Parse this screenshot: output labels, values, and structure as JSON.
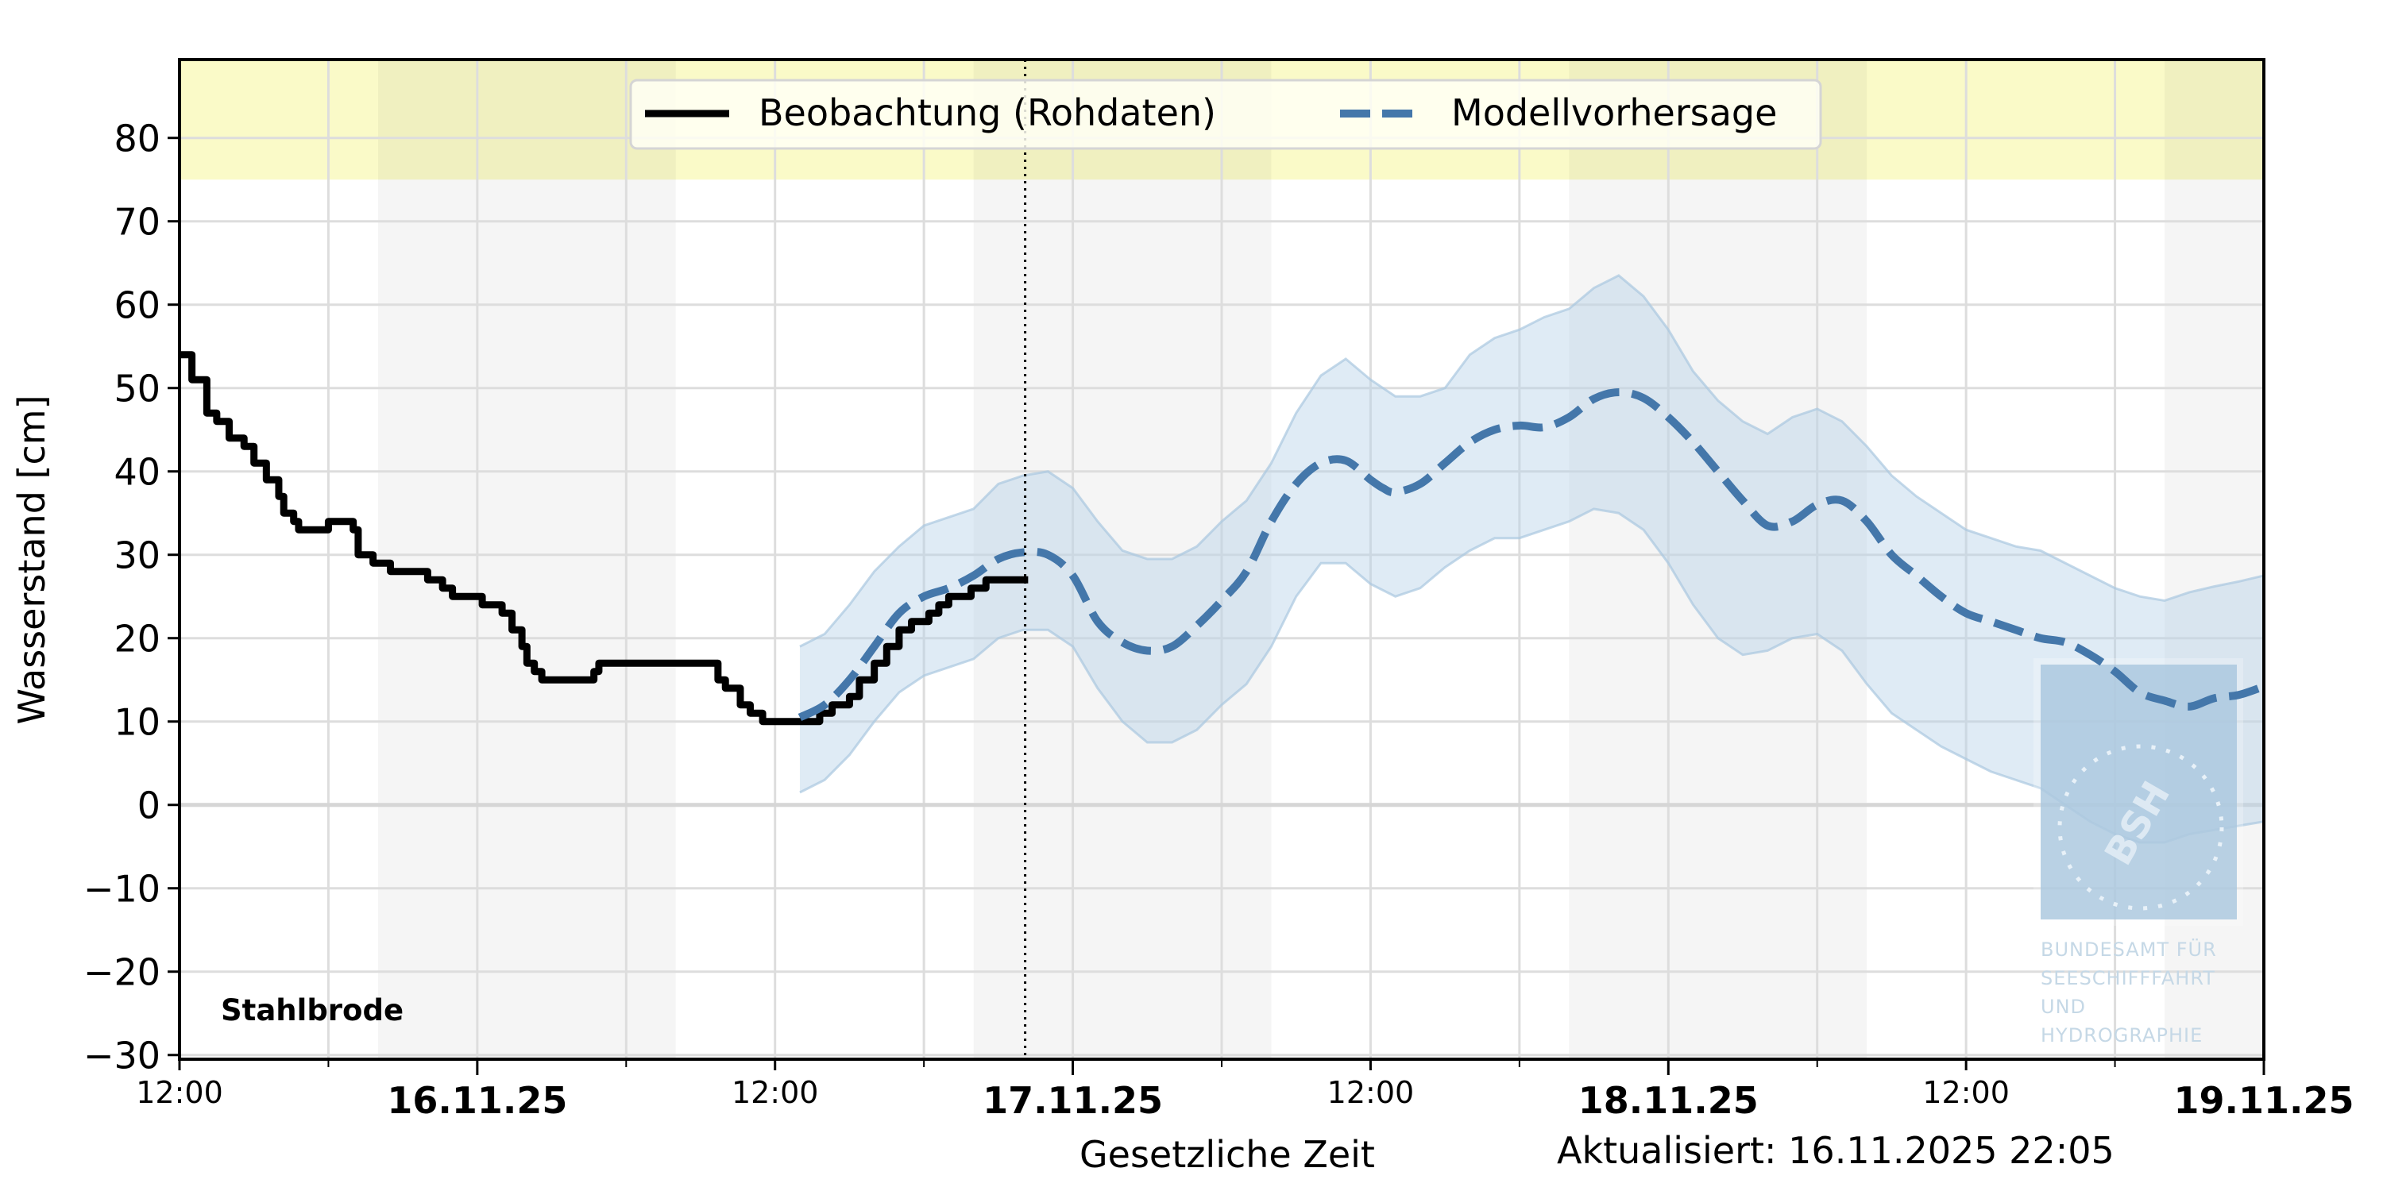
{
  "chart_data": {
    "type": "line",
    "title": "",
    "station": "Stahlbrode",
    "ylabel": "Wasserstand [cm]",
    "xlabel": "Gesetzliche Zeit",
    "updated": "Aktualisiert: 16.11.2025 22:05",
    "ylim": [
      -30.5,
      89.4
    ],
    "yticks": [
      -30,
      -20,
      -10,
      0,
      10,
      20,
      30,
      40,
      50,
      60,
      70,
      80
    ],
    "ytick_labels": [
      "−30",
      "−20",
      "−10",
      "0",
      "10",
      "20",
      "30",
      "40",
      "50",
      "60",
      "70",
      "80"
    ],
    "x_unit": "hours since 15.11.25 12:00",
    "xlim": [
      0,
      84
    ],
    "xticks_major": [
      {
        "h": 0,
        "label": "12:00",
        "bold": false
      },
      {
        "h": 12,
        "label": "16.11.25",
        "bold": true
      },
      {
        "h": 24,
        "label": "12:00",
        "bold": false
      },
      {
        "h": 36,
        "label": "17.11.25",
        "bold": true
      },
      {
        "h": 48,
        "label": "12:00",
        "bold": false
      },
      {
        "h": 60,
        "label": "18.11.25",
        "bold": true
      },
      {
        "h": 72,
        "label": "12:00",
        "bold": false
      },
      {
        "h": 84,
        "label": "19.11.25",
        "bold": true
      }
    ],
    "xticks_minor": [
      6,
      18,
      30,
      42,
      54,
      66,
      78
    ],
    "grid": true,
    "night_bands": [
      [
        8,
        20
      ],
      [
        32,
        44
      ],
      [
        56,
        68
      ],
      [
        80,
        84
      ]
    ],
    "warning_band": {
      "from": 75,
      "to": 89.4,
      "color": "#fafac8"
    },
    "now_line_h": 34.08,
    "legend": {
      "position": "upper center",
      "entries": [
        "Beobachtung (Rohdaten)",
        "Modellvorhersage"
      ]
    },
    "colors": {
      "observation": "#000000",
      "forecast": "#4477aa",
      "band_fill": "#b8d2e8",
      "band_edge": "#a9c8e0",
      "grid": "#dddddd",
      "night": "#f4f4f4"
    },
    "series": [
      {
        "name": "Beobachtung (Rohdaten)",
        "style": "solid-step",
        "points": [
          [
            0,
            54
          ],
          [
            0.5,
            51
          ],
          [
            1.1,
            47
          ],
          [
            1.5,
            46
          ],
          [
            2,
            44
          ],
          [
            2.6,
            43
          ],
          [
            3,
            41
          ],
          [
            3.5,
            39
          ],
          [
            4,
            37
          ],
          [
            4.2,
            35
          ],
          [
            4.6,
            34
          ],
          [
            4.8,
            33
          ],
          [
            5.7,
            33
          ],
          [
            6,
            34
          ],
          [
            6.6,
            34
          ],
          [
            7,
            33
          ],
          [
            7.2,
            30
          ],
          [
            7.8,
            29
          ],
          [
            8.5,
            28
          ],
          [
            9.7,
            28
          ],
          [
            10,
            27
          ],
          [
            10.6,
            26
          ],
          [
            11,
            25
          ],
          [
            11.8,
            25
          ],
          [
            12.2,
            24
          ],
          [
            13,
            23
          ],
          [
            13.4,
            21
          ],
          [
            13.8,
            19
          ],
          [
            14,
            17
          ],
          [
            14.3,
            16
          ],
          [
            14.6,
            15
          ],
          [
            16.5,
            15
          ],
          [
            16.7,
            16
          ],
          [
            16.9,
            17
          ],
          [
            21.4,
            17
          ],
          [
            21.7,
            15
          ],
          [
            22,
            14
          ],
          [
            22.6,
            12
          ],
          [
            23,
            11
          ],
          [
            23.5,
            10
          ],
          [
            25.4,
            10
          ],
          [
            25.8,
            11
          ],
          [
            26.3,
            12
          ],
          [
            27,
            13
          ],
          [
            27.4,
            15
          ],
          [
            28,
            17
          ],
          [
            28.5,
            19
          ],
          [
            29,
            21
          ],
          [
            29.5,
            22
          ],
          [
            30.2,
            23
          ],
          [
            30.6,
            24
          ],
          [
            31,
            25
          ],
          [
            31.9,
            26
          ],
          [
            32.5,
            27
          ],
          [
            34.2,
            27
          ]
        ]
      },
      {
        "name": "Modellvorhersage",
        "style": "dashed",
        "points": [
          [
            25,
            10.5
          ],
          [
            26,
            12
          ],
          [
            27,
            15
          ],
          [
            28,
            19
          ],
          [
            29,
            23
          ],
          [
            30,
            25
          ],
          [
            31,
            26
          ],
          [
            32,
            27.5
          ],
          [
            33,
            29.5
          ],
          [
            34,
            30.3
          ],
          [
            35,
            30
          ],
          [
            36,
            27.5
          ],
          [
            37,
            22
          ],
          [
            38,
            19.5
          ],
          [
            39,
            18.5
          ],
          [
            40,
            19
          ],
          [
            41,
            21.5
          ],
          [
            42,
            24.5
          ],
          [
            43,
            28
          ],
          [
            44,
            34
          ],
          [
            45,
            38.5
          ],
          [
            46,
            41
          ],
          [
            47,
            41.3
          ],
          [
            48,
            39
          ],
          [
            48.5,
            38
          ],
          [
            49,
            37.5
          ],
          [
            50,
            38.5
          ],
          [
            51,
            41
          ],
          [
            52,
            43.5
          ],
          [
            53,
            45
          ],
          [
            54,
            45.5
          ],
          [
            55,
            45.3
          ],
          [
            56,
            46.5
          ],
          [
            57,
            48.7
          ],
          [
            58,
            49.5
          ],
          [
            59,
            48.8
          ],
          [
            60,
            46.5
          ],
          [
            61,
            43.5
          ],
          [
            62,
            40
          ],
          [
            63,
            36.5
          ],
          [
            64,
            33.5
          ],
          [
            65,
            34
          ],
          [
            66,
            36
          ],
          [
            67,
            36.5
          ],
          [
            68,
            34
          ],
          [
            69,
            30
          ],
          [
            70,
            27.5
          ],
          [
            71,
            25
          ],
          [
            72,
            23
          ],
          [
            73,
            22
          ],
          [
            74,
            21
          ],
          [
            75,
            20
          ],
          [
            76,
            19.5
          ],
          [
            77,
            18
          ],
          [
            78,
            16
          ],
          [
            79,
            13.5
          ],
          [
            80,
            12.5
          ],
          [
            81,
            11.8
          ],
          [
            82,
            12.8
          ],
          [
            83,
            13.2
          ],
          [
            84,
            14.2
          ]
        ]
      },
      {
        "name": "Unsicherheitsbereich (oben)",
        "style": "band-upper",
        "points": [
          [
            25,
            19
          ],
          [
            26,
            20.5
          ],
          [
            27,
            24
          ],
          [
            28,
            28
          ],
          [
            29,
            31
          ],
          [
            30,
            33.5
          ],
          [
            31,
            34.5
          ],
          [
            32,
            35.5
          ],
          [
            33,
            38.5
          ],
          [
            34,
            39.5
          ],
          [
            35,
            40
          ],
          [
            36,
            38
          ],
          [
            37,
            34
          ],
          [
            38,
            30.5
          ],
          [
            39,
            29.5
          ],
          [
            40,
            29.5
          ],
          [
            41,
            31
          ],
          [
            42,
            34
          ],
          [
            43,
            36.5
          ],
          [
            44,
            41
          ],
          [
            45,
            47
          ],
          [
            46,
            51.5
          ],
          [
            47,
            53.5
          ],
          [
            48,
            51
          ],
          [
            49,
            49
          ],
          [
            50,
            49
          ],
          [
            51,
            50
          ],
          [
            52,
            54
          ],
          [
            53,
            56
          ],
          [
            54,
            57
          ],
          [
            55,
            58.5
          ],
          [
            56,
            59.5
          ],
          [
            57,
            62
          ],
          [
            58,
            63.5
          ],
          [
            59,
            61
          ],
          [
            60,
            57
          ],
          [
            61,
            52
          ],
          [
            62,
            48.5
          ],
          [
            63,
            46
          ],
          [
            64,
            44.5
          ],
          [
            65,
            46.5
          ],
          [
            66,
            47.5
          ],
          [
            67,
            46
          ],
          [
            68,
            43
          ],
          [
            69,
            39.5
          ],
          [
            70,
            37
          ],
          [
            71,
            35
          ],
          [
            72,
            33
          ],
          [
            73,
            32
          ],
          [
            74,
            31
          ],
          [
            75,
            30.5
          ],
          [
            76,
            29
          ],
          [
            77,
            27.5
          ],
          [
            78,
            26
          ],
          [
            79,
            25
          ],
          [
            80,
            24.5
          ],
          [
            81,
            25.5
          ],
          [
            82,
            26.2
          ],
          [
            83,
            26.8
          ],
          [
            84,
            27.5
          ]
        ]
      },
      {
        "name": "Unsicherheitsbereich (unten)",
        "style": "band-lower",
        "points": [
          [
            25,
            1.5
          ],
          [
            26,
            3
          ],
          [
            27,
            6
          ],
          [
            28,
            10
          ],
          [
            29,
            13.5
          ],
          [
            30,
            15.5
          ],
          [
            31,
            16.5
          ],
          [
            32,
            17.5
          ],
          [
            33,
            20
          ],
          [
            34,
            21
          ],
          [
            35,
            21
          ],
          [
            36,
            19
          ],
          [
            37,
            14
          ],
          [
            38,
            10
          ],
          [
            39,
            7.5
          ],
          [
            40,
            7.5
          ],
          [
            41,
            9
          ],
          [
            42,
            12
          ],
          [
            43,
            14.5
          ],
          [
            44,
            19
          ],
          [
            45,
            25
          ],
          [
            46,
            29
          ],
          [
            47,
            29
          ],
          [
            48,
            26.5
          ],
          [
            49,
            25
          ],
          [
            50,
            26
          ],
          [
            51,
            28.5
          ],
          [
            52,
            30.5
          ],
          [
            53,
            32
          ],
          [
            54,
            32
          ],
          [
            55,
            33
          ],
          [
            56,
            34
          ],
          [
            57,
            35.5
          ],
          [
            58,
            35
          ],
          [
            59,
            33
          ],
          [
            60,
            29
          ],
          [
            61,
            24
          ],
          [
            62,
            20
          ],
          [
            63,
            18
          ],
          [
            64,
            18.5
          ],
          [
            65,
            20
          ],
          [
            66,
            20.5
          ],
          [
            67,
            18.5
          ],
          [
            68,
            14.5
          ],
          [
            69,
            11
          ],
          [
            70,
            9
          ],
          [
            71,
            7
          ],
          [
            72,
            5.5
          ],
          [
            73,
            4
          ],
          [
            74,
            3
          ],
          [
            75,
            2
          ],
          [
            76,
            0
          ],
          [
            77,
            -2
          ],
          [
            78,
            -3.5
          ],
          [
            79,
            -4.5
          ],
          [
            80,
            -4.5
          ],
          [
            81,
            -3.5
          ],
          [
            82,
            -3
          ],
          [
            83,
            -2.5
          ],
          [
            84,
            -2
          ]
        ]
      }
    ]
  },
  "watermark": {
    "logo_text": "BSH",
    "lines": [
      "BUNDESAMT FÜR",
      "SEESCHIFFFAHRT",
      "UND",
      "HYDROGRAPHIE"
    ]
  }
}
